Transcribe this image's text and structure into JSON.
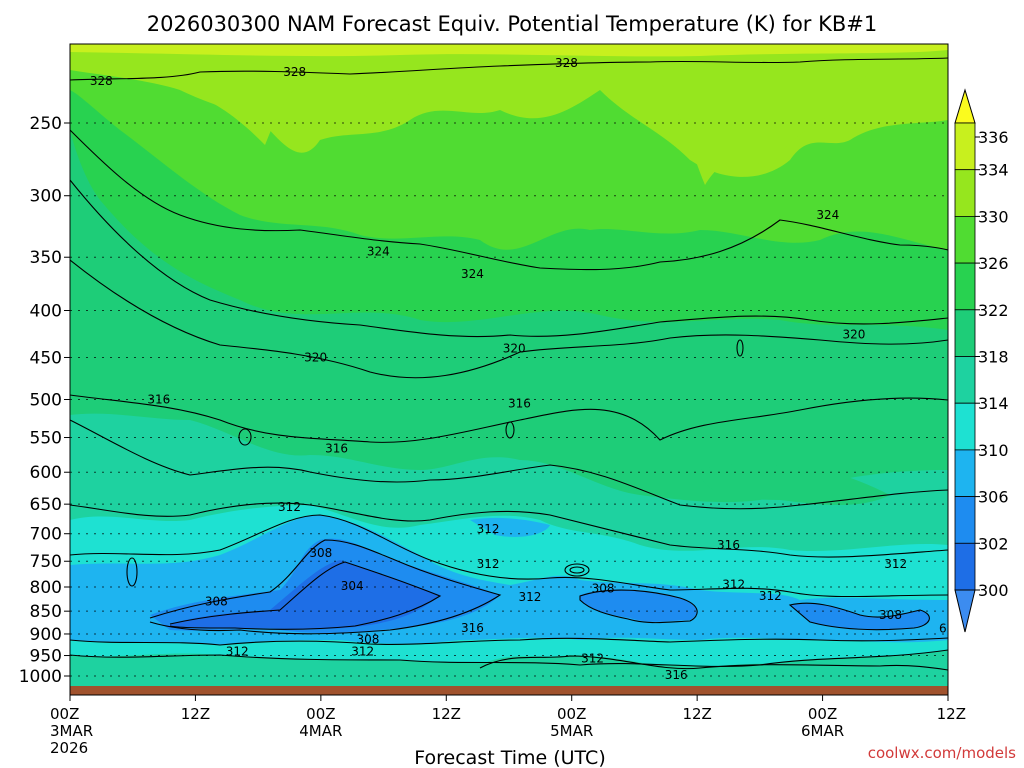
{
  "chart_data": {
    "type": "heatmap",
    "title": "2026030300 NAM Forecast Equiv. Potential Temperature (K) for KB#1",
    "xlabel": "Forecast Time (UTC)",
    "ylabel": "",
    "y_scale": "log",
    "y_reversed": true,
    "y_ticks": [
      "250",
      "300",
      "350",
      "400",
      "450",
      "500",
      "550",
      "600",
      "650",
      "700",
      "750",
      "800",
      "850",
      "900",
      "950",
      "1000"
    ],
    "x_range_hours": [
      0,
      84
    ],
    "x_ticks": [
      {
        "hour": 0,
        "lines": [
          "00Z",
          "3MAR",
          "2026"
        ]
      },
      {
        "hour": 12,
        "lines": [
          "12Z"
        ]
      },
      {
        "hour": 24,
        "lines": [
          "00Z",
          "4MAR"
        ]
      },
      {
        "hour": 36,
        "lines": [
          "12Z"
        ]
      },
      {
        "hour": 48,
        "lines": [
          "00Z",
          "5MAR"
        ]
      },
      {
        "hour": 60,
        "lines": [
          "12Z"
        ]
      },
      {
        "hour": 72,
        "lines": [
          "00Z",
          "6MAR"
        ]
      },
      {
        "hour": 84,
        "lines": [
          "12Z"
        ]
      }
    ],
    "colorbar": {
      "levels": [
        "336",
        "334",
        "330",
        "326",
        "322",
        "318",
        "314",
        "310",
        "306",
        "302",
        "300"
      ],
      "colors": [
        "#fbfb1e",
        "#c8f01e",
        "#96e61e",
        "#50dc32",
        "#28d250",
        "#1ecd78",
        "#1ed2a0",
        "#1ee1d2",
        "#1eb4f0",
        "#1e8cf0",
        "#1e6ee6",
        "#3c8cf0"
      ]
    },
    "contour_labels": [
      {
        "hour": 3,
        "p": 225,
        "text": "328"
      },
      {
        "hour": 21.5,
        "p": 220,
        "text": "328"
      },
      {
        "hour": 47.5,
        "p": 215,
        "text": "328"
      },
      {
        "hour": 29.5,
        "p": 345,
        "text": "324"
      },
      {
        "hour": 38.5,
        "p": 365,
        "text": "324"
      },
      {
        "hour": 72.5,
        "p": 315,
        "text": "324"
      },
      {
        "hour": 23.5,
        "p": 450,
        "text": "320"
      },
      {
        "hour": 42.5,
        "p": 440,
        "text": "320"
      },
      {
        "hour": 75,
        "p": 425,
        "text": "320"
      },
      {
        "hour": 8.5,
        "p": 500,
        "text": "316"
      },
      {
        "hour": 25.5,
        "p": 565,
        "text": "316"
      },
      {
        "hour": 43,
        "p": 505,
        "text": "316"
      },
      {
        "hour": 63,
        "p": 720,
        "text": "316"
      },
      {
        "hour": 38.5,
        "p": 887,
        "text": "316"
      },
      {
        "hour": 58,
        "p": 997,
        "text": "316"
      },
      {
        "hour": 21,
        "p": 655,
        "text": "312"
      },
      {
        "hour": 40,
        "p": 692,
        "text": "312"
      },
      {
        "hour": 40,
        "p": 755,
        "text": "312"
      },
      {
        "hour": 44,
        "p": 820,
        "text": "312"
      },
      {
        "hour": 63.5,
        "p": 795,
        "text": "312"
      },
      {
        "hour": 67,
        "p": 818,
        "text": "312"
      },
      {
        "hour": 79,
        "p": 755,
        "text": "312"
      },
      {
        "hour": 16,
        "p": 940,
        "text": "312"
      },
      {
        "hour": 28,
        "p": 940,
        "text": "312"
      },
      {
        "hour": 50,
        "p": 957,
        "text": "312"
      },
      {
        "hour": 24,
        "p": 735,
        "text": "308"
      },
      {
        "hour": 14,
        "p": 830,
        "text": "308"
      },
      {
        "hour": 28.5,
        "p": 913,
        "text": "308"
      },
      {
        "hour": 51,
        "p": 803,
        "text": "308"
      },
      {
        "hour": 78.5,
        "p": 858,
        "text": "308"
      },
      {
        "hour": 27,
        "p": 798,
        "text": "304"
      },
      {
        "hour": 83.5,
        "p": 888,
        "text": "6"
      }
    ]
  },
  "credit": "coolwx.com/models"
}
